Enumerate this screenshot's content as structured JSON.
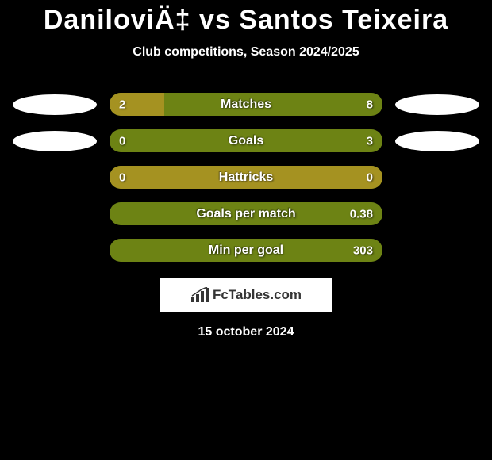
{
  "title": "DaniloviÄ‡ vs Santos Teixeira",
  "subtitle": "Club competitions, Season 2024/2025",
  "colors": {
    "left_fill": "#a59221",
    "right_fill": "#6d8314",
    "oval_white": "#ffffff",
    "background": "#000000",
    "text": "#ffffff"
  },
  "rows": [
    {
      "label": "Matches",
      "left_val": "2",
      "right_val": "8",
      "left_pct": 20,
      "show_left_oval": true,
      "show_right_oval": true,
      "left_oval_color": "#ffffff",
      "right_oval_color": "#ffffff"
    },
    {
      "label": "Goals",
      "left_val": "0",
      "right_val": "3",
      "left_pct": 0,
      "show_left_oval": true,
      "show_right_oval": true,
      "left_oval_color": "#ffffff",
      "right_oval_color": "#ffffff"
    },
    {
      "label": "Hattricks",
      "left_val": "0",
      "right_val": "0",
      "left_pct": 100,
      "show_left_oval": false,
      "show_right_oval": false
    },
    {
      "label": "Goals per match",
      "left_val": "",
      "right_val": "0.38",
      "left_pct": 0,
      "show_left_oval": false,
      "show_right_oval": false
    },
    {
      "label": "Min per goal",
      "left_val": "",
      "right_val": "303",
      "left_pct": 0,
      "show_left_oval": false,
      "show_right_oval": false
    }
  ],
  "logo_text": "FcTables.com",
  "date": "15 october 2024"
}
